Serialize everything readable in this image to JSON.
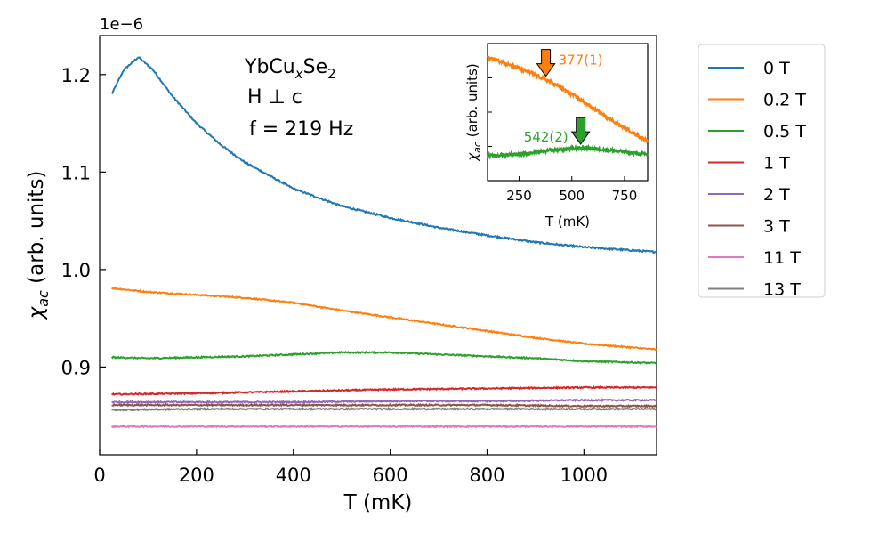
{
  "chart_data": {
    "type": "line",
    "title": "",
    "xlabel": "T (mK)",
    "ylabel_main": "χ",
    "ylabel_sub": "ac",
    "ylabel_rest": " (arb. units)",
    "y_scale_label": "1e−6",
    "xlim": [
      0,
      1150
    ],
    "ylim": [
      0.81,
      1.24
    ],
    "x_ticks": [
      0,
      200,
      400,
      600,
      800,
      1000
    ],
    "x_tick_labels": [
      "0",
      "200",
      "400",
      "600",
      "800",
      "1000"
    ],
    "y_ticks": [
      0.9,
      1.0,
      1.1,
      1.2
    ],
    "y_tick_labels": [
      "0.9",
      "1.0",
      "1.1",
      "1.2"
    ],
    "annotations": {
      "formula_prefix": "YbCu",
      "formula_x": "x",
      "formula_se": "Se",
      "formula_2": "2",
      "field_dir": "H ⊥ c",
      "frequency": "f = 219 Hz"
    },
    "legend_position": "outside-right",
    "series": [
      {
        "name": "0 T",
        "color": "#1f77b4",
        "x": [
          25,
          50,
          80,
          110,
          150,
          200,
          250,
          300,
          400,
          500,
          600,
          700,
          800,
          900,
          1000,
          1150
        ],
        "values": [
          1.18,
          1.205,
          1.218,
          1.205,
          1.178,
          1.15,
          1.128,
          1.11,
          1.083,
          1.065,
          1.053,
          1.043,
          1.035,
          1.028,
          1.023,
          1.018
        ]
      },
      {
        "name": "0.2 T",
        "color": "#ff7f0e",
        "x": [
          25,
          100,
          200,
          300,
          400,
          500,
          600,
          700,
          800,
          900,
          1000,
          1150
        ],
        "values": [
          0.981,
          0.977,
          0.974,
          0.971,
          0.966,
          0.958,
          0.951,
          0.944,
          0.937,
          0.93,
          0.924,
          0.918
        ]
      },
      {
        "name": "0.5 T",
        "color": "#2ca02c",
        "x": [
          25,
          100,
          200,
          300,
          400,
          500,
          600,
          700,
          800,
          900,
          1000,
          1150
        ],
        "values": [
          0.91,
          0.909,
          0.91,
          0.911,
          0.913,
          0.915,
          0.915,
          0.913,
          0.911,
          0.909,
          0.906,
          0.904
        ]
      },
      {
        "name": "1 T",
        "color": "#d62728",
        "x": [
          25,
          200,
          400,
          600,
          800,
          1000,
          1150
        ],
        "values": [
          0.872,
          0.873,
          0.875,
          0.877,
          0.878,
          0.879,
          0.879
        ]
      },
      {
        "name": "2 T",
        "color": "#9467bd",
        "x": [
          25,
          200,
          400,
          600,
          800,
          1000,
          1150
        ],
        "values": [
          0.864,
          0.864,
          0.864,
          0.865,
          0.865,
          0.866,
          0.866
        ]
      },
      {
        "name": "3 T",
        "color": "#8c564b",
        "x": [
          25,
          200,
          400,
          600,
          800,
          1000,
          1150
        ],
        "values": [
          0.861,
          0.861,
          0.861,
          0.861,
          0.861,
          0.86,
          0.86
        ]
      },
      {
        "name": "11 T",
        "color": "#e377c2",
        "x": [
          25,
          200,
          400,
          600,
          800,
          1000,
          1150
        ],
        "values": [
          0.839,
          0.839,
          0.839,
          0.839,
          0.839,
          0.839,
          0.839
        ]
      },
      {
        "name": "13 T",
        "color": "#7f7f7f",
        "x": [
          25,
          200,
          400,
          600,
          800,
          1000,
          1150
        ],
        "values": [
          0.856,
          0.857,
          0.857,
          0.857,
          0.857,
          0.857,
          0.857
        ]
      }
    ],
    "inset": {
      "xlabel": "T (mK)",
      "ylabel_main": "χ",
      "ylabel_sub": "ac",
      "ylabel_rest": " (arb. units)",
      "xlim": [
        100,
        860
      ],
      "ylim": [
        0.0,
        1.0
      ],
      "x_ticks": [
        250,
        500,
        750
      ],
      "x_tick_labels": [
        "250",
        "500",
        "750"
      ],
      "series": [
        {
          "name": "0.2 T",
          "color": "#ff7f0e",
          "x": [
            100,
            200,
            300,
            400,
            500,
            600,
            700,
            800,
            860
          ],
          "values": [
            0.9,
            0.85,
            0.79,
            0.72,
            0.63,
            0.53,
            0.43,
            0.34,
            0.29
          ]
        },
        {
          "name": "0.5 T",
          "color": "#2ca02c",
          "x": [
            100,
            200,
            300,
            400,
            500,
            540,
            600,
            700,
            800,
            860
          ],
          "values": [
            0.18,
            0.19,
            0.2,
            0.22,
            0.235,
            0.24,
            0.235,
            0.22,
            0.2,
            0.19
          ]
        }
      ],
      "markers": [
        {
          "label": "377(1)",
          "x": 377,
          "color": "#ff7f0e"
        },
        {
          "label": "542(2)",
          "x": 542,
          "color": "#2ca02c"
        }
      ]
    }
  }
}
